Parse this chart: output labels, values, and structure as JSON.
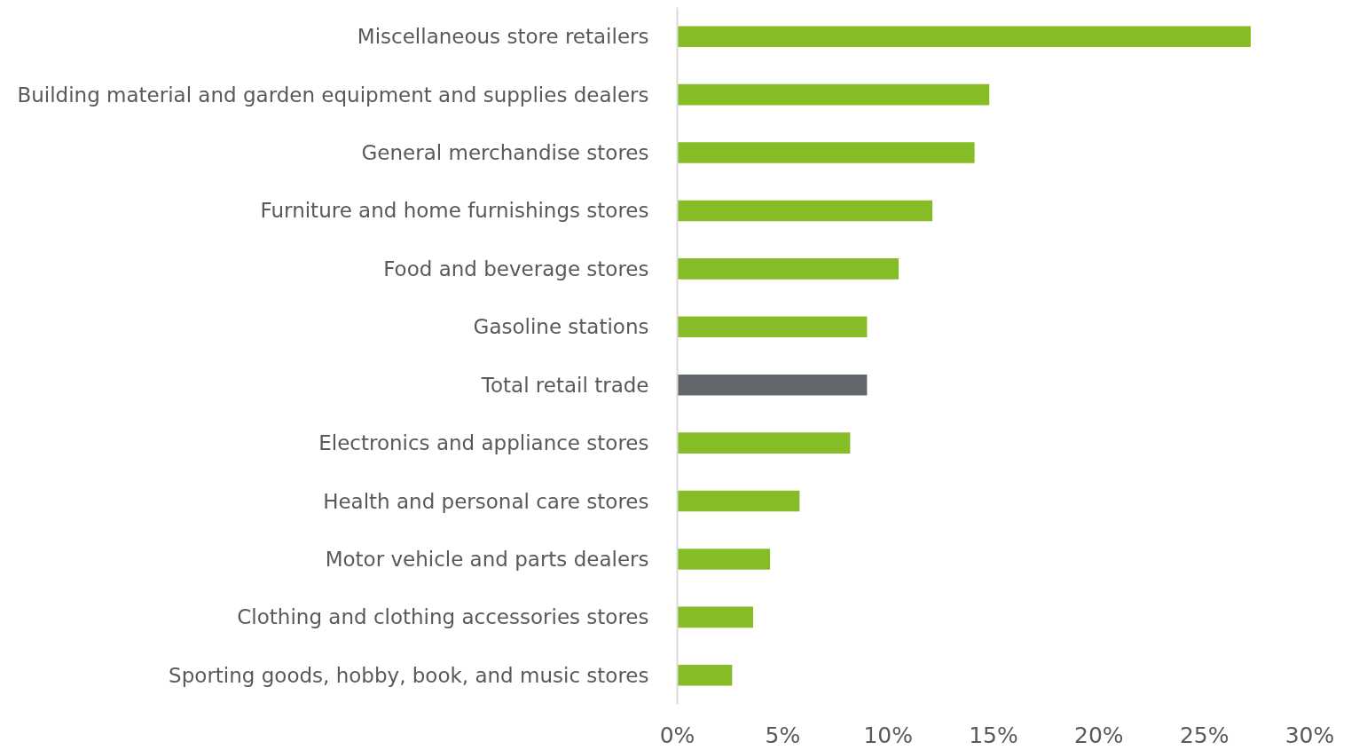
{
  "chart_data": {
    "type": "bar",
    "orientation": "horizontal",
    "categories": [
      "Miscellaneous store retailers",
      "Building material and garden equipment and supplies dealers",
      "General merchandise stores",
      "Furniture and home furnishings stores",
      "Food and beverage stores",
      "Gasoline stations",
      "Total retail trade",
      "Electronics and appliance stores",
      "Health and personal care stores",
      "Motor vehicle and parts dealers",
      "Clothing and clothing accessories stores",
      "Sporting goods, hobby, book, and music stores"
    ],
    "values": [
      27.2,
      14.8,
      14.1,
      12.1,
      10.5,
      9.0,
      9.0,
      8.2,
      5.8,
      4.4,
      3.6,
      2.6
    ],
    "colors": [
      "#86bc25",
      "#86bc25",
      "#86bc25",
      "#86bc25",
      "#86bc25",
      "#86bc25",
      "#63666a",
      "#86bc25",
      "#86bc25",
      "#86bc25",
      "#86bc25",
      "#86bc25"
    ],
    "xlim": [
      0,
      30
    ],
    "xticks": [
      {
        "value": 0,
        "label": "0%"
      },
      {
        "value": 5,
        "label": "5%"
      },
      {
        "value": 10,
        "label": "10%"
      },
      {
        "value": 15,
        "label": "15%"
      },
      {
        "value": 20,
        "label": "20%"
      },
      {
        "value": 25,
        "label": "25%"
      },
      {
        "value": 30,
        "label": "30%"
      }
    ],
    "grid": false
  }
}
